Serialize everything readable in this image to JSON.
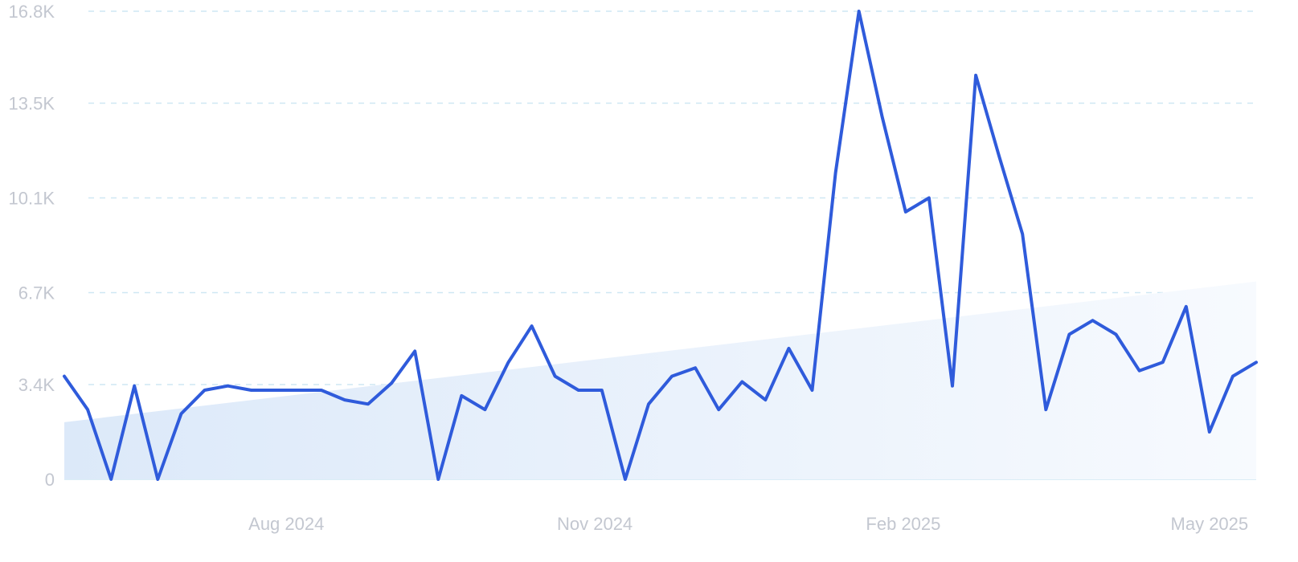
{
  "chart_data": {
    "type": "line",
    "title": "",
    "xlabel": "",
    "ylabel": "",
    "ylim": [
      0,
      16800
    ],
    "y_ticks": [
      {
        "value": 0,
        "label": "0"
      },
      {
        "value": 3400,
        "label": "3.4K"
      },
      {
        "value": 6700,
        "label": "6.7K"
      },
      {
        "value": 10100,
        "label": "10.1K"
      },
      {
        "value": 13500,
        "label": "13.5K"
      },
      {
        "value": 16800,
        "label": "16.8K"
      }
    ],
    "x_ticks": [
      {
        "index": 9.5,
        "label": "Aug 2024"
      },
      {
        "index": 22.7,
        "label": "Nov 2024"
      },
      {
        "index": 35.9,
        "label": "Feb 2025"
      },
      {
        "index": 49,
        "label": "May 2025"
      }
    ],
    "grid": true,
    "legend": "none",
    "series": [
      {
        "values": [
          3700,
          2500,
          0,
          3350,
          0,
          2350,
          3200,
          3350,
          3200,
          3200,
          3200,
          3200,
          2850,
          2700,
          3450,
          4600,
          0,
          3000,
          2500,
          4200,
          5500,
          3700,
          3200,
          3200,
          0,
          2700,
          3700,
          4000,
          2500,
          3500,
          2850,
          4700,
          3200,
          11000,
          16800,
          13000,
          9600,
          10100,
          3350,
          14500,
          11600,
          8800,
          2500,
          5200,
          5700,
          5200,
          3900,
          4200,
          6200,
          1700,
          3700,
          4200
        ]
      }
    ],
    "trend": {
      "start": 2050,
      "end": 7100
    }
  },
  "colors": {
    "line": "#2f5bdb",
    "area_start": "#dce9f9",
    "area_end": "#f7fafe",
    "grid": "#cfe7f3",
    "tick_text": "#c3c7d0"
  }
}
